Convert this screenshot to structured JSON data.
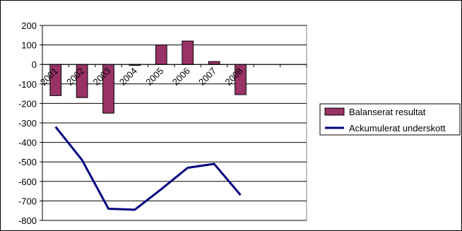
{
  "chart_data": {
    "type": "bar",
    "categories": [
      "2001",
      "2002",
      "2003",
      "2004",
      "2005",
      "2006",
      "2007",
      "2008"
    ],
    "ylim": [
      -800,
      200
    ],
    "yticks": [
      200,
      100,
      0,
      -100,
      -200,
      -300,
      -400,
      -500,
      -600,
      -700,
      -800
    ],
    "grid": true,
    "legend_position": "right",
    "series": [
      {
        "name": "Balanserat resultat",
        "type": "bar",
        "color": "#993366",
        "values": [
          -160,
          -170,
          -250,
          -5,
          100,
          120,
          15,
          -155
        ]
      },
      {
        "name": "Ackumulerat underskott",
        "type": "line",
        "color": "#000080",
        "values": [
          -320,
          -490,
          -740,
          -745,
          -640,
          -530,
          -510,
          -670
        ]
      }
    ]
  }
}
